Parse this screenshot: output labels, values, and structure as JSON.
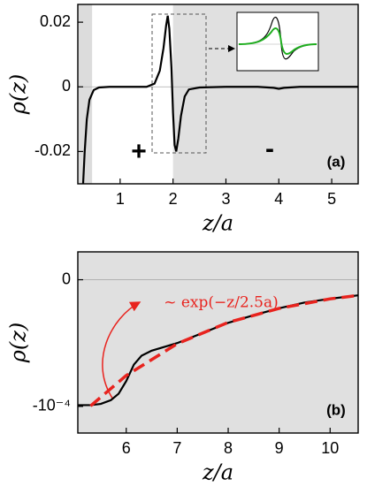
{
  "chart_data": [
    {
      "type": "line",
      "xlabel": "z/a",
      "ylabel": "ρ(z)",
      "xlim": [
        0.2,
        5.5
      ],
      "ylim": [
        -0.03,
        0.0255
      ],
      "xticks": [
        1,
        2,
        3,
        4,
        5
      ],
      "yticks": [
        -0.02,
        0,
        0.02
      ],
      "shading": [
        {
          "from": 0.2,
          "to": 0.47,
          "color": "#dcdcdc"
        },
        {
          "from": 2,
          "to": 5.5,
          "color": "#e0e0e0"
        }
      ],
      "series": [
        {
          "color": "#000000",
          "x": [
            0.3,
            0.33,
            0.37,
            0.42,
            0.5,
            0.6,
            0.8,
            1.2,
            1.5,
            1.65,
            1.75,
            1.82,
            1.87,
            1.9,
            1.93,
            1.97,
            2.0,
            2.03,
            2.06,
            2.1,
            2.15,
            2.22,
            2.3,
            2.5,
            3.0,
            3.6,
            3.9,
            4.0,
            4.1,
            4.4,
            5.0,
            5.5
          ],
          "values": [
            -0.03,
            -0.02,
            -0.01,
            -0.004,
            -0.001,
            -0.0002,
            0,
            0,
            0,
            0.001,
            0.005,
            0.012,
            0.019,
            0.022,
            0.018,
            0.006,
            -0.008,
            -0.018,
            -0.02,
            -0.016,
            -0.009,
            -0.003,
            -0.0008,
            -0.0002,
            0,
            0,
            -0.0003,
            -0.0006,
            -0.0003,
            0,
            0,
            0
          ]
        }
      ],
      "annotations": [
        "+",
        "-",
        "(a)"
      ]
    },
    {
      "type": "line",
      "xlabel": "z/a",
      "ylabel": "ρ(z)",
      "xlim": [
        5.05,
        10.55
      ],
      "ylim": [
        -0.000121,
        2.2e-05
      ],
      "xticks": [
        6,
        7,
        8,
        9,
        10
      ],
      "yticks": [
        {
          "value": -0.0001,
          "label": "-10⁻⁴"
        },
        0
      ],
      "shading": [
        {
          "from": 5.05,
          "to": 10.55,
          "color": "#e0e0e0"
        }
      ],
      "series": [
        {
          "color": "#000000",
          "x": [
            5.05,
            5.3,
            5.5,
            5.7,
            5.85,
            6.0,
            6.15,
            6.3,
            6.5,
            7,
            7.5,
            8,
            8.5,
            9,
            9.5,
            10,
            10.55
          ],
          "values": [
            -9.9e-05,
            -9.9e-05,
            -9.8e-05,
            -9.5e-05,
            -9e-05,
            -8e-05,
            -6.7e-05,
            -6e-05,
            -5.6e-05,
            -5e-05,
            -4.2e-05,
            -3.4e-05,
            -2.8e-05,
            -2.25e-05,
            -1.8e-05,
            -1.5e-05,
            -1.23e-05
          ]
        },
        {
          "color": "#e8231e",
          "dashed": true,
          "x": [
            5.3,
            6,
            7,
            8,
            9,
            10,
            10.55
          ],
          "values": [
            -9.96e-05,
            -7.56e-05,
            -5.05e-05,
            -3.37e-05,
            -2.26e-05,
            -1.51e-05,
            -1.24e-05
          ]
        }
      ],
      "annotations": [
        "(b)",
        "~ exp(−z/2.5a)"
      ]
    }
  ]
}
